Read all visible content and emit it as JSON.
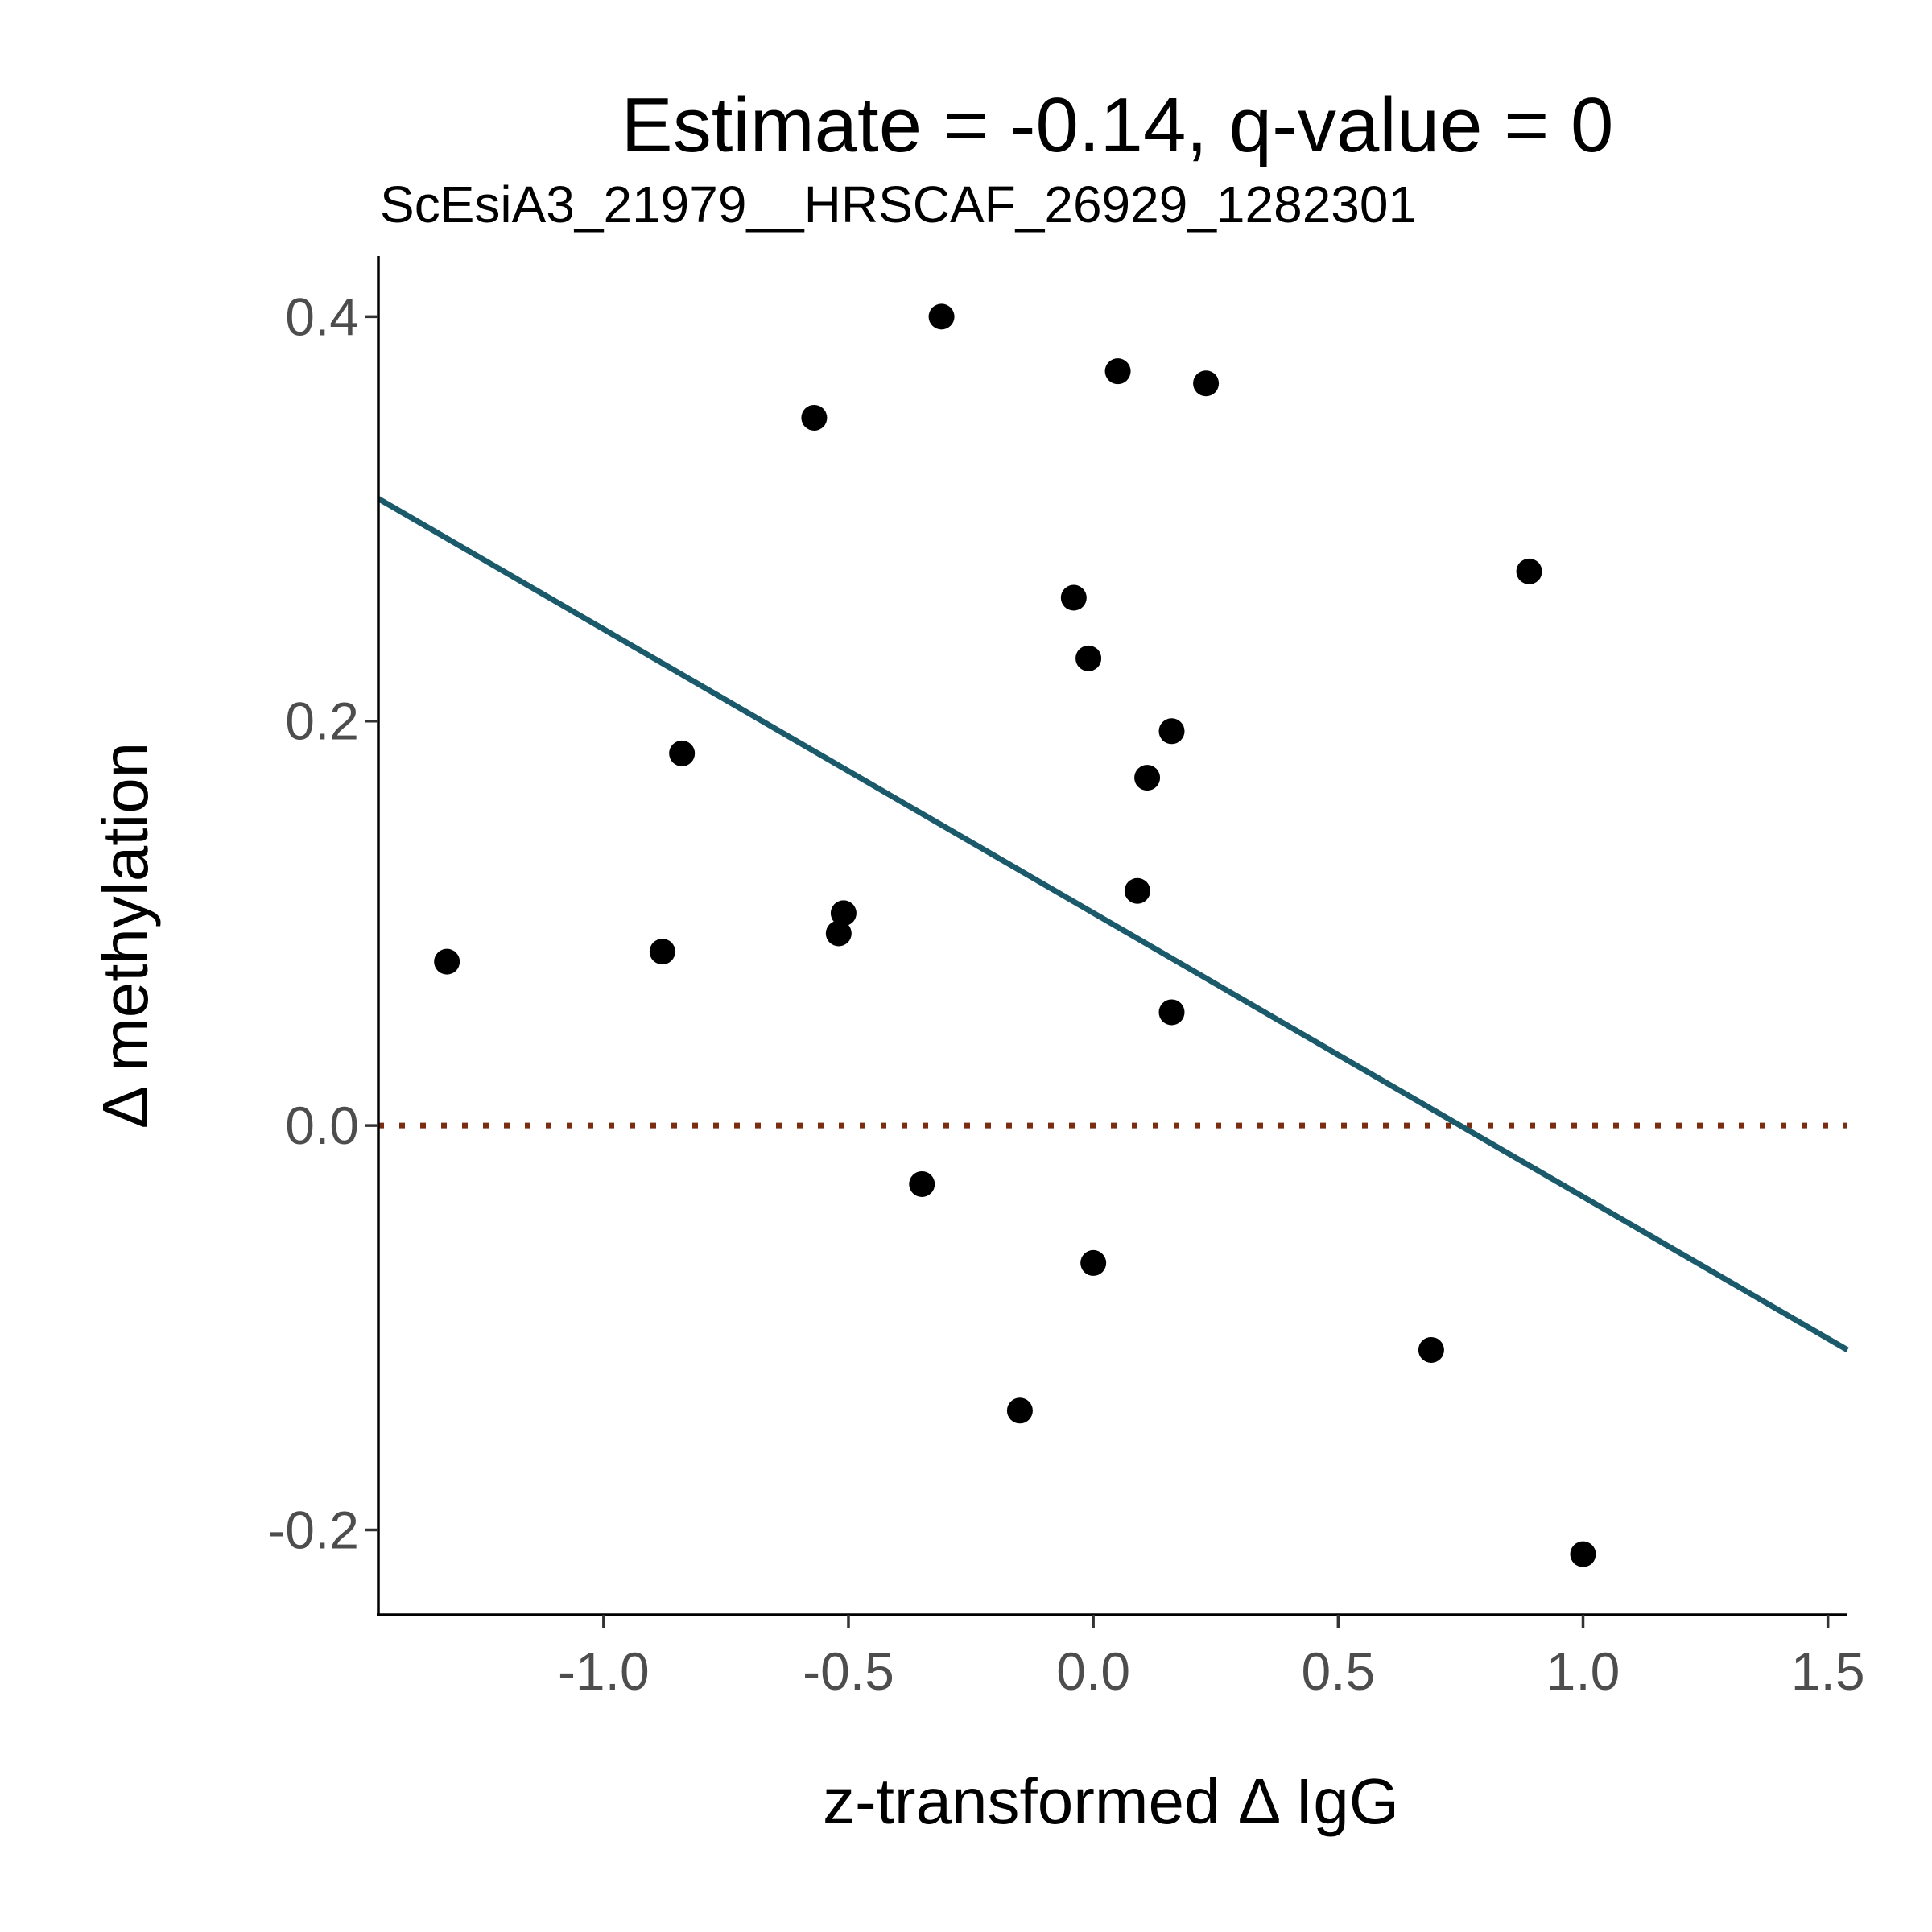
{
  "chart_data": {
    "type": "scatter",
    "title": "Estimate = -0.14, q-value = 0",
    "subtitle": "ScEsiA3_21979__HRSCAF_26929_1282301",
    "xlabel": "z-transformed Δ IgG",
    "ylabel": "Δ methylation",
    "xlim": [
      -1.46,
      1.54
    ],
    "ylim": [
      -0.242,
      0.43
    ],
    "x_ticks": [
      -1.0,
      -0.5,
      0.0,
      0.5,
      1.0,
      1.5
    ],
    "x_tick_labels": [
      "-1.0",
      "-0.5",
      "0.0",
      "0.5",
      "1.0",
      "1.5"
    ],
    "y_ticks": [
      -0.2,
      0.0,
      0.2,
      0.4
    ],
    "y_tick_labels": [
      "-0.2",
      "0.0",
      "0.2",
      "0.4"
    ],
    "grid": false,
    "points": {
      "x": [
        -0.31,
        0.05,
        0.23,
        -0.57,
        0.89,
        -0.04,
        -0.01,
        0.16,
        -0.84,
        0.11,
        0.09,
        -0.51,
        -0.52,
        -1.32,
        -0.88,
        0.16,
        -0.35,
        0.0,
        0.69,
        -0.15,
        1.0
      ],
      "y": [
        0.4,
        0.373,
        0.367,
        0.35,
        0.274,
        0.261,
        0.231,
        0.195,
        0.184,
        0.172,
        0.116,
        0.105,
        0.095,
        0.081,
        0.086,
        0.056,
        -0.029,
        -0.068,
        -0.111,
        -0.141,
        -0.212
      ],
      "color": "#000000"
    },
    "fit_line": {
      "x": [
        -1.46,
        1.54
      ],
      "y": [
        0.31,
        -0.111
      ],
      "color": "#1a5a6b"
    },
    "reference_line": {
      "y": 0.0,
      "style": "dotted",
      "color": "#7b2d12"
    }
  }
}
